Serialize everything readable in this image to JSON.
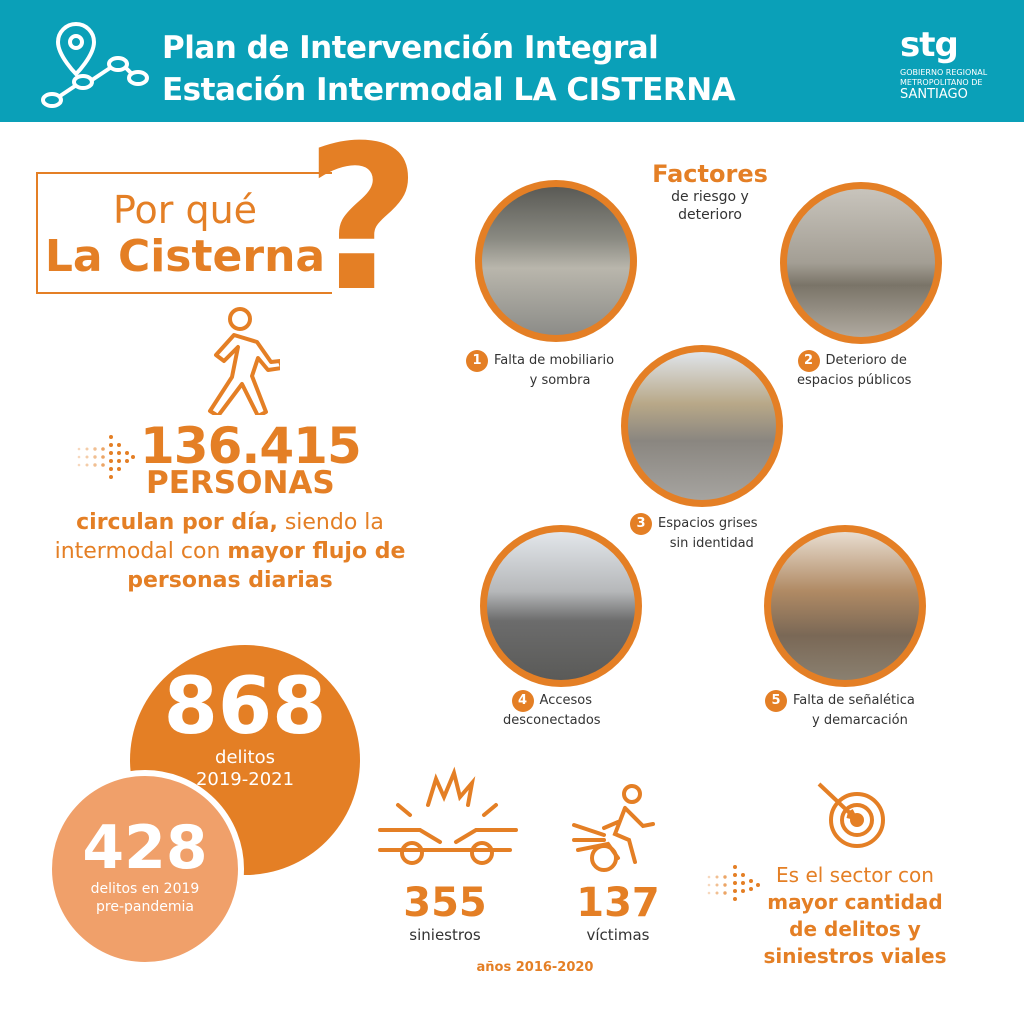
{
  "colors": {
    "header": "#0aa0b8",
    "orange": "#e47f25",
    "light_orange": "#f0a06a"
  },
  "header": {
    "title_line1": "Plan de Intervención Integral",
    "title_line2": "Estación Intermodal LA CISTERNA",
    "icon": "map-route-pin-icon",
    "logo": {
      "mark": "stg",
      "line1": "GOBIERNO REGIONAL",
      "line2": "METROPOLITANO DE",
      "line3": "SANTIAGO"
    }
  },
  "why": {
    "line1": "Por qué",
    "line2": "La Cisterna",
    "mark": "?"
  },
  "people": {
    "count": "136.415",
    "unit": "PERSONAS",
    "t1": "circulan por día,",
    "t2": " siendo la",
    "t3": "intermodal con ",
    "t4": "mayor flujo de",
    "t5": "personas diarias"
  },
  "crimes": {
    "total": "868",
    "total_label": "delitos",
    "total_years": "2019-2021",
    "pre": "428",
    "pre_label1": "delitos en 2019",
    "pre_label2": "pre-pandemia"
  },
  "factors": {
    "title": "Factores",
    "subtitle1": "de riesgo y",
    "subtitle2": "deterioro",
    "items": [
      {
        "n": "1",
        "l1": "Falta de mobiliario",
        "l2": "y sombra"
      },
      {
        "n": "2",
        "l1": "Deterioro de",
        "l2": "espacios públicos"
      },
      {
        "n": "3",
        "l1": "Espacios grises",
        "l2": "sin identidad"
      },
      {
        "n": "4",
        "l1": "Accesos",
        "l2": "desconectados"
      },
      {
        "n": "5",
        "l1": "Falta de señalética",
        "l2": "y demarcación"
      }
    ]
  },
  "road": {
    "crashes": "355",
    "crashes_label": "siniestros",
    "victims": "137",
    "victims_label": "víctimas",
    "years": "años 2016-2020"
  },
  "sector": {
    "l1": "Es el sector con",
    "l2": "mayor cantidad",
    "l3": "de delitos y",
    "l4": "siniestros viales"
  }
}
